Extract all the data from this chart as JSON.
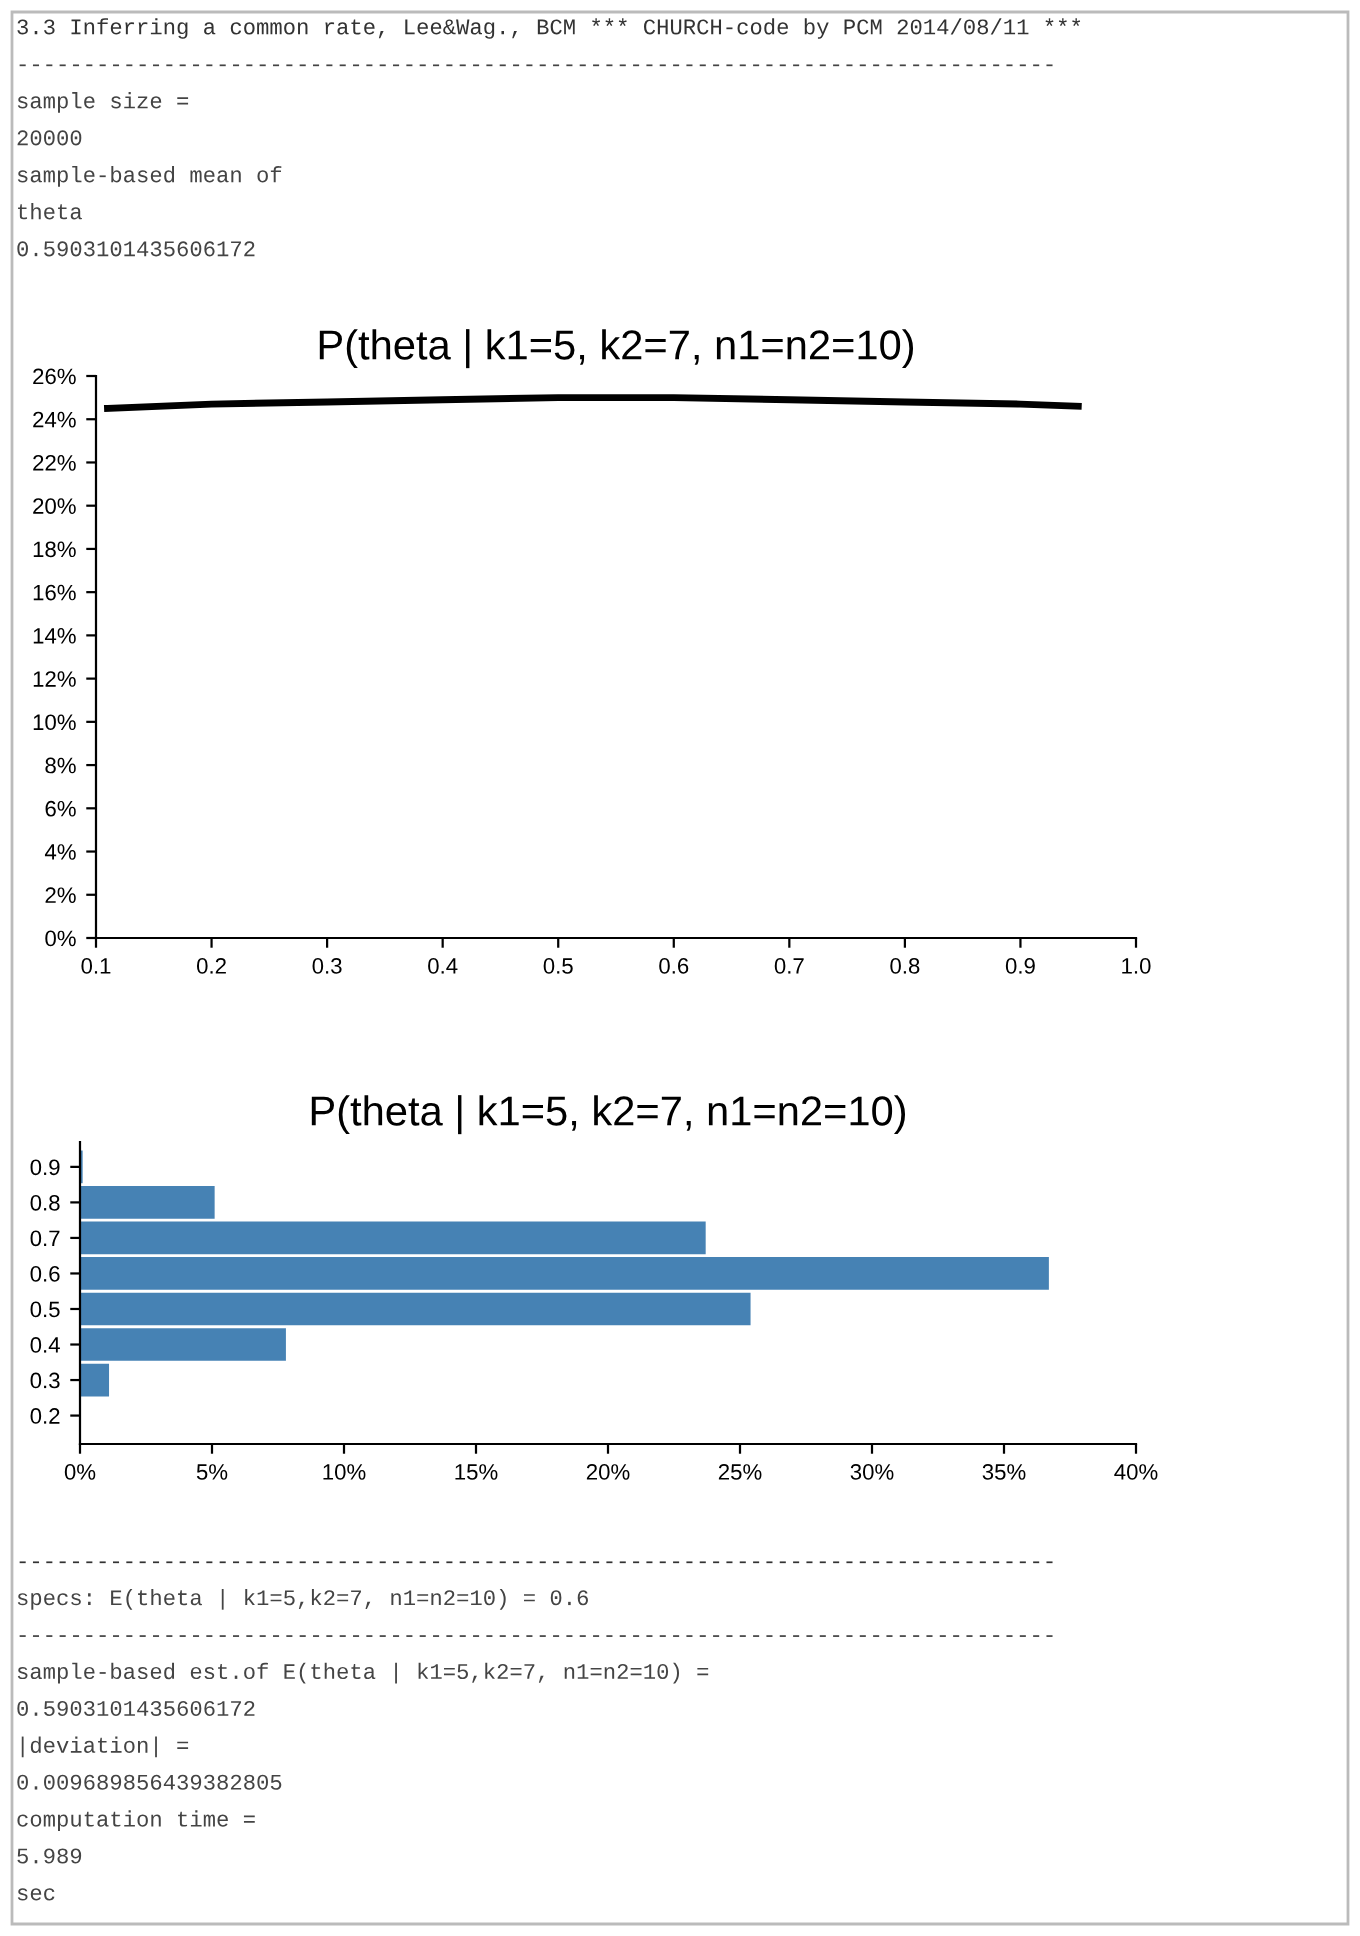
{
  "chart_data": [
    {
      "type": "other",
      "annotations": [
        "3.3 Inferring a common rate, Lee&Wag., BCM *** CHURCH-code by PCM 2014/08/11 ***",
        "------------------------------------------------------------------------------",
        "sample size =",
        "20000",
        "sample-based mean of",
        "theta",
        "0.5903101435606172"
      ]
    },
    {
      "type": "line",
      "title": "P(theta | k1=5, k2=7, n1=n2=10)",
      "x": [
        0.11,
        0.2,
        0.3,
        0.4,
        0.5,
        0.6,
        0.7,
        0.8,
        0.9,
        0.95
      ],
      "series": [
        {
          "color": "#000000",
          "values": [
            24.5,
            24.7,
            24.8,
            24.9,
            25.0,
            25.0,
            24.9,
            24.8,
            24.7,
            24.6
          ]
        }
      ],
      "xlim": [
        0.1,
        1.0
      ],
      "xticks": [
        0.1,
        0.2,
        0.3,
        0.4,
        0.5,
        0.6,
        0.7,
        0.8,
        0.9,
        {
          "value": 1.0,
          "label": "1.0"
        }
      ],
      "ylim": [
        0,
        26
      ],
      "yticks": [
        {
          "value": 0,
          "label": "0%"
        },
        {
          "value": 2,
          "label": "2%"
        },
        {
          "value": 4,
          "label": "4%"
        },
        {
          "value": 6,
          "label": "6%"
        },
        {
          "value": 8,
          "label": "8%"
        },
        {
          "value": 10,
          "label": "10%"
        },
        {
          "value": 12,
          "label": "12%"
        },
        {
          "value": 14,
          "label": "14%"
        },
        {
          "value": 16,
          "label": "16%"
        },
        {
          "value": 18,
          "label": "18%"
        },
        {
          "value": 20,
          "label": "20%"
        },
        {
          "value": 22,
          "label": "22%"
        },
        {
          "value": 24,
          "label": "24%"
        },
        {
          "value": 26,
          "label": "26%"
        }
      ],
      "marker": "none",
      "line_style": "solid"
    },
    {
      "type": "bar",
      "orientation": "horizontal",
      "title": "P(theta | k1=5, k2=7, n1=n2=10)",
      "x": [
        0.9,
        0.8,
        0.7,
        0.6,
        0.5,
        0.4,
        0.3
      ],
      "series": [
        {
          "color": "#4682b4",
          "values": [
            0.1,
            5.1,
            23.7,
            36.7,
            25.4,
            7.8,
            1.1
          ]
        }
      ],
      "xlim": [
        0,
        40
      ],
      "xticks": [
        {
          "value": 0,
          "label": "0%"
        },
        {
          "value": 5,
          "label": "5%"
        },
        {
          "value": 10,
          "label": "10%"
        },
        {
          "value": 15,
          "label": "15%"
        },
        {
          "value": 20,
          "label": "20%"
        },
        {
          "value": 25,
          "label": "25%"
        },
        {
          "value": 30,
          "label": "30%"
        },
        {
          "value": 35,
          "label": "35%"
        },
        {
          "value": 40,
          "label": "40%"
        }
      ],
      "ylim": [
        0.12,
        0.97
      ],
      "yticks": [
        0.2,
        0.3,
        0.4,
        0.5,
        0.6,
        0.7,
        0.8,
        0.9
      ]
    },
    {
      "type": "other",
      "annotations": [
        "------------------------------------------------------------------------------",
        "specs: E(theta | k1=5,k2=7, n1=n2=10) = 0.6",
        "------------------------------------------------------------------------------",
        "sample-based est.of E(theta | k1=5,k2=7, n1=n2=10) =",
        "0.5903101435606172",
        "|deviation| =",
        "0.009689856439382805",
        "computation time =",
        "5.989",
        "sec"
      ]
    }
  ]
}
